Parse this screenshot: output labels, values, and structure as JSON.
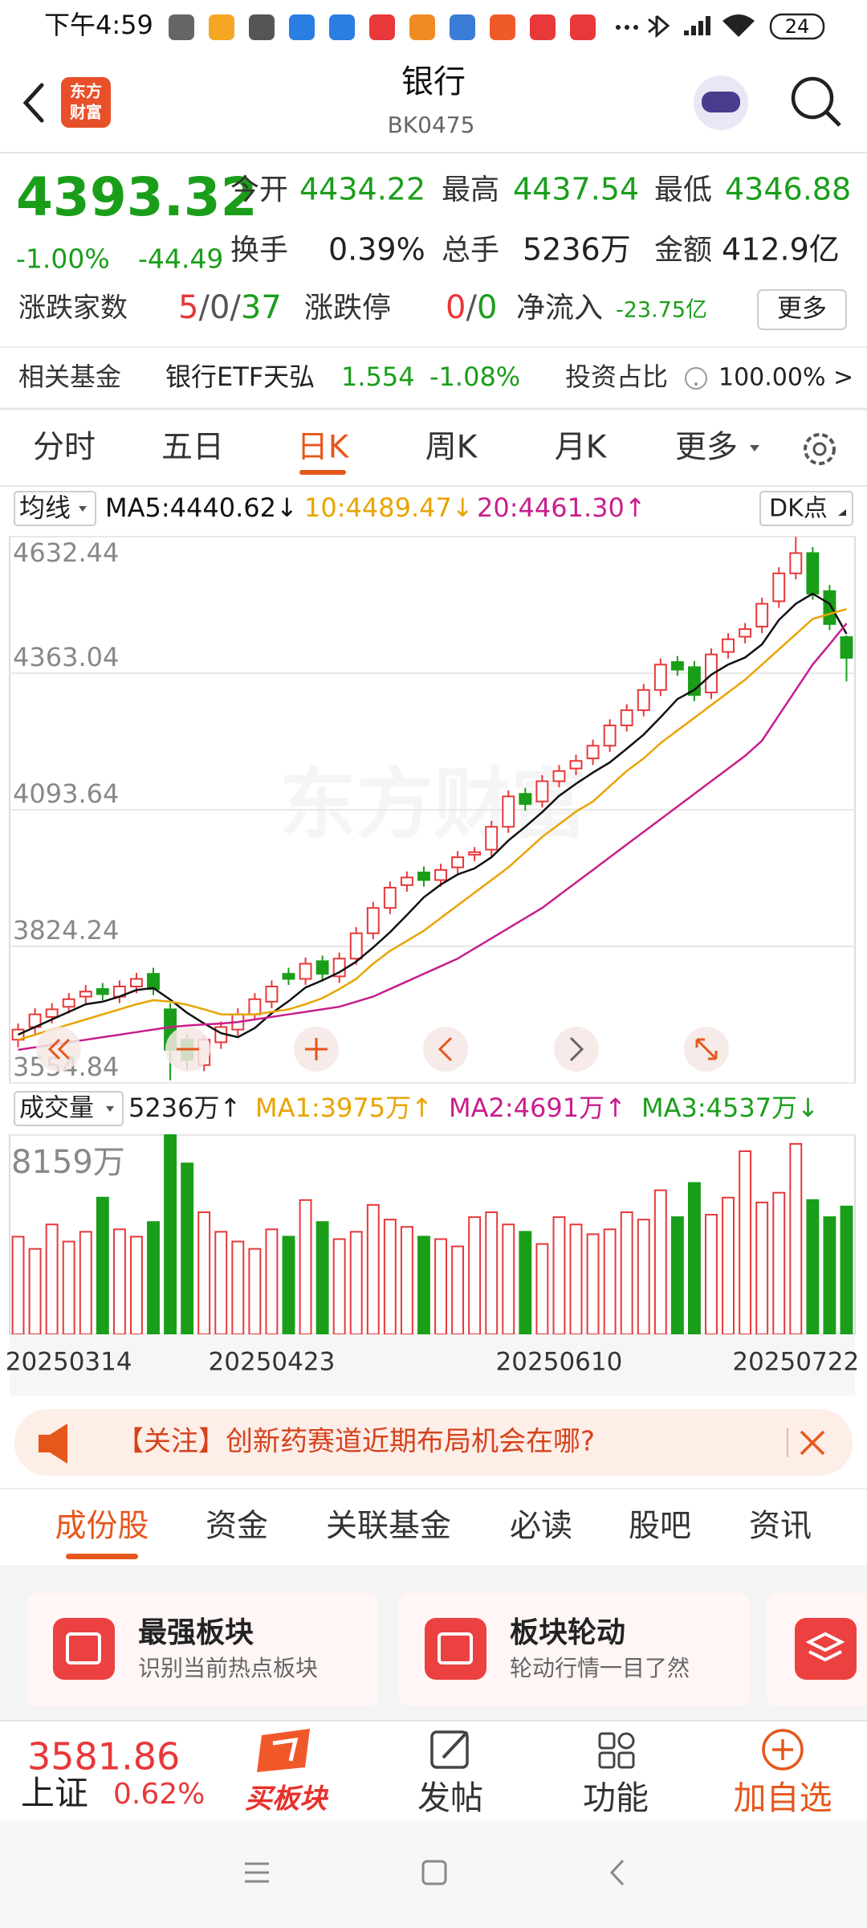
{
  "status_bar": {
    "time": "下午4:59",
    "battery": "24"
  },
  "header": {
    "logo": [
      "东方",
      "财富"
    ],
    "title": "银行",
    "code": "BK0475"
  },
  "quote": {
    "price": "4393.32",
    "change_pct": "-1.00%",
    "change": "-44.49",
    "stats": [
      {
        "label": "今开",
        "value": "4434.22"
      },
      {
        "label": "最高",
        "value": "4437.54"
      },
      {
        "label": "最低",
        "value": "4346.88"
      },
      {
        "label": "换手",
        "value": "0.39%"
      },
      {
        "label": "总手",
        "value": "5236万"
      },
      {
        "label": "金额",
        "value": "412.9亿"
      }
    ],
    "breadth": {
      "label": "涨跌家数",
      "up": "5",
      "sep": "/",
      "flat": "0",
      "down": "37"
    },
    "limit": {
      "label": "涨跌停",
      "up": "0",
      "sep": "/",
      "down": "0"
    },
    "inflow": {
      "label": "净流入",
      "value": "-23.75亿"
    },
    "more": "更多"
  },
  "fund": {
    "label": "相关基金",
    "name": "银行ETF天弘",
    "price": "1.554",
    "change": "-1.08%",
    "ratio_label": "投资占比",
    "ratio": "100.00% >"
  },
  "period_tabs": {
    "items": [
      "分时",
      "五日",
      "日K",
      "周K",
      "月K",
      "更多"
    ],
    "selected": 2
  },
  "chart_data": {
    "type": "candlestick",
    "legend_label": "均线",
    "marker_label": "DK点",
    "watermark": "东方财富",
    "up_color": "#e8383a",
    "down_color": "#1a9e1a",
    "categories": [
      null,
      null,
      null,
      "20250314",
      null,
      null,
      null,
      null,
      null,
      null,
      null,
      null,
      null,
      null,
      null,
      "20250423",
      null,
      null,
      null,
      null,
      null,
      null,
      null,
      null,
      null,
      null,
      null,
      null,
      null,
      null,
      null,
      null,
      "20250610",
      null,
      null,
      null,
      null,
      null,
      null,
      null,
      null,
      null,
      null,
      null,
      null,
      null,
      "20250722",
      null,
      null,
      null
    ],
    "open": [
      3640,
      3665,
      3685,
      3705,
      3725,
      3740,
      3725,
      3745,
      3770,
      3700,
      3640,
      3590,
      3635,
      3660,
      3690,
      3715,
      3770,
      3760,
      3795,
      3765,
      3800,
      3850,
      3900,
      3945,
      3970,
      3955,
      3980,
      4005,
      4015,
      4060,
      4125,
      4110,
      4150,
      4175,
      4195,
      4220,
      4260,
      4290,
      4330,
      4385,
      4375,
      4325,
      4405,
      4435,
      4455,
      4505,
      4560,
      4600,
      4525,
      4434.22
    ],
    "high": [
      3672,
      3702,
      3712,
      3732,
      3748,
      3752,
      3757,
      3772,
      3782,
      3712,
      3652,
      3648,
      3676,
      3702,
      3732,
      3757,
      3782,
      3802,
      3806,
      3812,
      3862,
      3912,
      3952,
      3972,
      3982,
      3987,
      4012,
      4020,
      4072,
      4132,
      4137,
      4162,
      4182,
      4202,
      4232,
      4272,
      4302,
      4342,
      4392,
      4397,
      4387,
      4412,
      4442,
      4462,
      4512,
      4572,
      4632,
      4612,
      4537,
      4437.54
    ],
    "low": [
      3625,
      3652,
      3672,
      3692,
      3712,
      3718,
      3712,
      3732,
      3728,
      3560,
      3580,
      3578,
      3622,
      3648,
      3678,
      3702,
      3748,
      3748,
      3758,
      3752,
      3788,
      3838,
      3888,
      3932,
      3942,
      3942,
      3968,
      3992,
      4002,
      4048,
      4092,
      4098,
      4138,
      4162,
      4182,
      4208,
      4248,
      4278,
      4318,
      4358,
      4308,
      4312,
      4392,
      4422,
      4442,
      4492,
      4548,
      4508,
      4448,
      4346.88
    ],
    "close": [
      3660,
      3690,
      3700,
      3720,
      3735,
      3730,
      3745,
      3760,
      3740,
      3620,
      3600,
      3640,
      3665,
      3690,
      3720,
      3745,
      3760,
      3790,
      3770,
      3800,
      3850,
      3900,
      3940,
      3960,
      3955,
      3975,
      4000,
      4010,
      4060,
      4120,
      4105,
      4150,
      4170,
      4190,
      4220,
      4260,
      4290,
      4330,
      4380,
      4370,
      4320,
      4400,
      4430,
      4450,
      4500,
      4560,
      4600,
      4520,
      4460,
      4393.32
    ],
    "series": [
      {
        "name": "MA5:4440.62↓",
        "color": "#111111",
        "values": [
          3650,
          3665,
          3680,
          3695,
          3710,
          3715,
          3725,
          3738,
          3742,
          3719,
          3693,
          3672,
          3653,
          3645,
          3663,
          3692,
          3716,
          3743,
          3757,
          3773,
          3794,
          3822,
          3852,
          3886,
          3921,
          3946,
          3966,
          3978,
          4000,
          4033,
          4060,
          4089,
          4121,
          4145,
          4167,
          4187,
          4214,
          4242,
          4276,
          4312,
          4330,
          4360,
          4380,
          4394,
          4420,
          4468,
          4500,
          4520,
          4500,
          4440.62
        ]
      },
      {
        "name": "10:4489.47↓",
        "color": "#e8a400",
        "values": [
          3640,
          3650,
          3660,
          3670,
          3680,
          3690,
          3700,
          3710,
          3718,
          3715,
          3709,
          3700,
          3690,
          3690,
          3690,
          3695,
          3700,
          3710,
          3722,
          3740,
          3760,
          3790,
          3815,
          3835,
          3855,
          3880,
          3905,
          3930,
          3955,
          3980,
          4010,
          4040,
          4065,
          4090,
          4110,
          4140,
          4170,
          4195,
          4225,
          4250,
          4275,
          4300,
          4325,
          4350,
          4380,
          4410,
          4440,
          4470,
          4480,
          4489.47
        ]
      },
      {
        "name": "20:4461.30↑",
        "color": "#c81e8c",
        "values": [
          3620,
          3625,
          3630,
          3635,
          3640,
          3645,
          3650,
          3655,
          3660,
          3665,
          3668,
          3670,
          3672,
          3675,
          3680,
          3685,
          3690,
          3695,
          3700,
          3705,
          3715,
          3725,
          3740,
          3755,
          3770,
          3785,
          3800,
          3820,
          3840,
          3860,
          3880,
          3900,
          3925,
          3950,
          3975,
          4000,
          4025,
          4050,
          4075,
          4100,
          4125,
          4150,
          4175,
          4200,
          4230,
          4280,
          4330,
          4380,
          4420,
          4461.3
        ]
      }
    ],
    "ylim": [
      3554.84,
      4632.44
    ],
    "yticks": [
      4632.44,
      4363.04,
      4093.64,
      3824.24,
      3554.84
    ],
    "volume": {
      "label": "成交量",
      "current": "5236万↑",
      "ma_labels": [
        {
          "name": "MA1:3975万↑",
          "color": "#e8a400"
        },
        {
          "name": "MA2:4691万↑",
          "color": "#c81e8c"
        },
        {
          "name": "MA3:4537万↓",
          "color": "#1a9e1a"
        }
      ],
      "values": [
        4000,
        3500,
        4500,
        3800,
        4200,
        5600,
        4300,
        4000,
        4600,
        8159,
        7000,
        5000,
        4200,
        3800,
        3500,
        4300,
        4000,
        5500,
        4600,
        3900,
        4200,
        5300,
        4700,
        4400,
        4000,
        3900,
        3600,
        4800,
        5000,
        4500,
        4200,
        3700,
        4800,
        4500,
        4100,
        4300,
        5000,
        4700,
        5900,
        4800,
        6200,
        4900,
        5600,
        7500,
        5400,
        5800,
        7800,
        5500,
        4800,
        5236
      ],
      "ylim": [
        0,
        8159
      ],
      "yticks": [
        {
          "value": 8159,
          "label": "8159万"
        }
      ]
    }
  },
  "notice": "【关注】创新药赛道近期布局机会在哪?",
  "section_tabs": {
    "items": [
      "成份股",
      "资金",
      "关联基金",
      "必读",
      "股吧",
      "资讯"
    ],
    "selected": 0
  },
  "cards": [
    {
      "title": "最强板块",
      "subtitle": "识别当前热点板块"
    },
    {
      "title": "板块轮动",
      "subtitle": "轮动行情一目了然"
    }
  ],
  "footer": {
    "index_value": "3581.86",
    "index_name": "上证",
    "index_change": "0.62%",
    "actions": [
      "买板块",
      "发帖",
      "功能",
      "加自选"
    ]
  }
}
